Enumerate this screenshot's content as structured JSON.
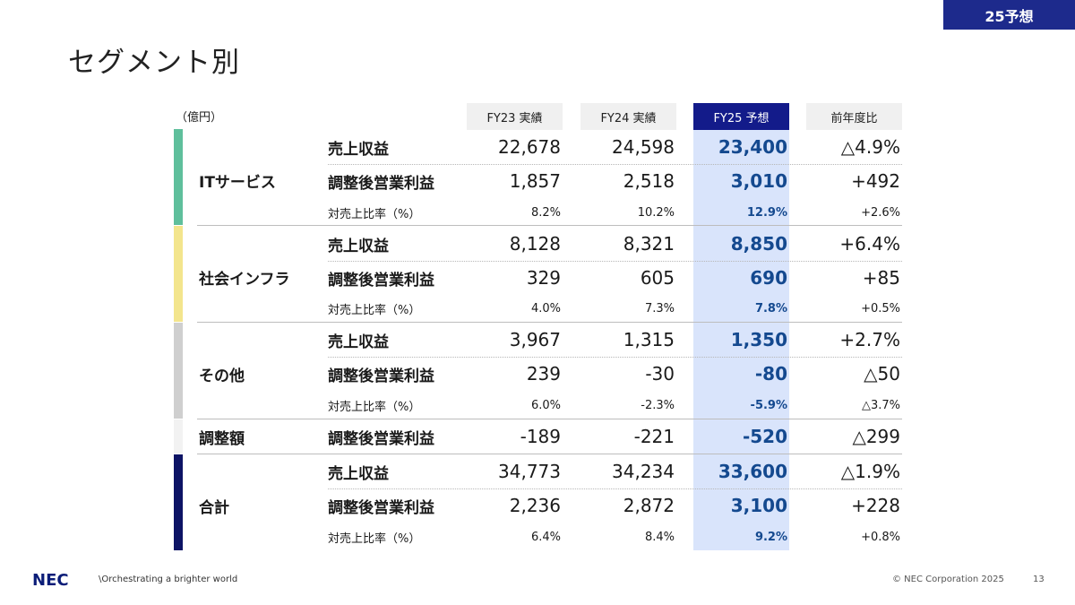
{
  "badge": "25予想",
  "title": "セグメント別",
  "unit": "（億円）",
  "headers": [
    "FY23 実績",
    "FY24 実績",
    "FY25 予想",
    "前年度比"
  ],
  "colors": {
    "it_services": "#5fbf9c",
    "social_infra": "#f3e58d",
    "others": "#cfcfcf",
    "adjustment": "#f2f2f2",
    "total": "#0d1465",
    "highlight": "#d9e4fb",
    "header_highlight": "#131b8a",
    "value_highlight": "#14498f"
  },
  "segments": [
    {
      "name": "ITサービス",
      "rows": [
        {
          "label": "売上収益",
          "values": [
            "22,678",
            "24,598",
            "23,400",
            "△4.9%"
          ]
        },
        {
          "label": "調整後営業利益",
          "values": [
            "1,857",
            "2,518",
            "3,010",
            "+492"
          ]
        },
        {
          "label": "対売上比率（%）",
          "values": [
            "8.2%",
            "10.2%",
            "12.9%",
            "+2.6%"
          ]
        }
      ]
    },
    {
      "name": "社会インフラ",
      "rows": [
        {
          "label": "売上収益",
          "values": [
            "8,128",
            "8,321",
            "8,850",
            "+6.4%"
          ]
        },
        {
          "label": "調整後営業利益",
          "values": [
            "329",
            "605",
            "690",
            "+85"
          ]
        },
        {
          "label": "対売上比率（%）",
          "values": [
            "4.0%",
            "7.3%",
            "7.8%",
            "+0.5%"
          ]
        }
      ]
    },
    {
      "name": "その他",
      "rows": [
        {
          "label": "売上収益",
          "values": [
            "3,967",
            "1,315",
            "1,350",
            "+2.7%"
          ]
        },
        {
          "label": "調整後営業利益",
          "values": [
            "239",
            "-30",
            "-80",
            "△50"
          ]
        },
        {
          "label": "対売上比率（%）",
          "values": [
            "6.0%",
            "-2.3%",
            "-5.9%",
            "△3.7%"
          ]
        }
      ]
    },
    {
      "name": "調整額",
      "rows": [
        {
          "label": "調整後営業利益",
          "values": [
            "-189",
            "-221",
            "-520",
            "△299"
          ]
        }
      ]
    },
    {
      "name": "合計",
      "rows": [
        {
          "label": "売上収益",
          "values": [
            "34,773",
            "34,234",
            "33,600",
            "△1.9%"
          ]
        },
        {
          "label": "調整後営業利益",
          "values": [
            "2,236",
            "2,872",
            "3,100",
            "+228"
          ]
        },
        {
          "label": "対売上比率（%）",
          "values": [
            "6.4%",
            "8.4%",
            "9.2%",
            "+0.8%"
          ]
        }
      ]
    }
  ],
  "footer": {
    "logo": "NEC",
    "tagline": "\\Orchestrating a brighter world",
    "copyright": "© NEC Corporation 2025",
    "page": "13"
  }
}
